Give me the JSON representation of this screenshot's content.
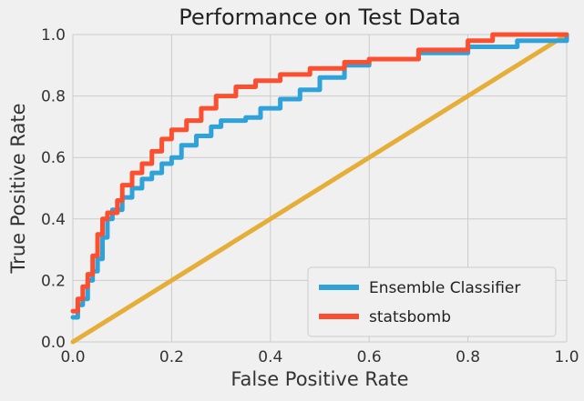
{
  "chart_data": {
    "type": "line",
    "title": "Performance on Test Data",
    "xlabel": "False Positive Rate",
    "ylabel": "True Positive Rate",
    "xlim": [
      0.0,
      1.0
    ],
    "ylim": [
      0.0,
      1.0
    ],
    "xticks": [
      "0.0",
      "0.2",
      "0.4",
      "0.6",
      "0.8",
      "1.0"
    ],
    "yticks": [
      "0.0",
      "0.2",
      "0.4",
      "0.6",
      "0.8",
      "1.0"
    ],
    "grid": true,
    "legend_position": "lower-right",
    "series": [
      {
        "name": "Ensemble Classifier",
        "color": "#30a2da",
        "points": [
          [
            0.0,
            0.08
          ],
          [
            0.01,
            0.12
          ],
          [
            0.02,
            0.14
          ],
          [
            0.03,
            0.2
          ],
          [
            0.04,
            0.23
          ],
          [
            0.05,
            0.27
          ],
          [
            0.06,
            0.34
          ],
          [
            0.07,
            0.4
          ],
          [
            0.08,
            0.43
          ],
          [
            0.1,
            0.47
          ],
          [
            0.12,
            0.5
          ],
          [
            0.14,
            0.53
          ],
          [
            0.16,
            0.55
          ],
          [
            0.18,
            0.58
          ],
          [
            0.2,
            0.6
          ],
          [
            0.22,
            0.64
          ],
          [
            0.25,
            0.67
          ],
          [
            0.28,
            0.7
          ],
          [
            0.3,
            0.72
          ],
          [
            0.35,
            0.73
          ],
          [
            0.38,
            0.76
          ],
          [
            0.42,
            0.79
          ],
          [
            0.46,
            0.82
          ],
          [
            0.5,
            0.86
          ],
          [
            0.55,
            0.9
          ],
          [
            0.6,
            0.92
          ],
          [
            0.7,
            0.94
          ],
          [
            0.8,
            0.96
          ],
          [
            0.9,
            0.98
          ],
          [
            1.0,
            1.0
          ]
        ]
      },
      {
        "name": "statsbomb",
        "color": "#fc4f30",
        "points": [
          [
            0.0,
            0.1
          ],
          [
            0.01,
            0.14
          ],
          [
            0.02,
            0.18
          ],
          [
            0.03,
            0.22
          ],
          [
            0.04,
            0.28
          ],
          [
            0.05,
            0.35
          ],
          [
            0.06,
            0.4
          ],
          [
            0.07,
            0.42
          ],
          [
            0.09,
            0.46
          ],
          [
            0.1,
            0.51
          ],
          [
            0.12,
            0.55
          ],
          [
            0.14,
            0.58
          ],
          [
            0.16,
            0.62
          ],
          [
            0.18,
            0.66
          ],
          [
            0.2,
            0.69
          ],
          [
            0.23,
            0.72
          ],
          [
            0.26,
            0.76
          ],
          [
            0.29,
            0.8
          ],
          [
            0.33,
            0.83
          ],
          [
            0.37,
            0.85
          ],
          [
            0.42,
            0.87
          ],
          [
            0.48,
            0.89
          ],
          [
            0.55,
            0.91
          ],
          [
            0.6,
            0.92
          ],
          [
            0.7,
            0.95
          ],
          [
            0.8,
            0.98
          ],
          [
            0.85,
            1.0
          ],
          [
            1.0,
            1.0
          ]
        ]
      },
      {
        "name": "",
        "color": "#e5ae38",
        "points": [
          [
            0.0,
            0.0
          ],
          [
            1.0,
            1.0
          ]
        ]
      }
    ]
  }
}
